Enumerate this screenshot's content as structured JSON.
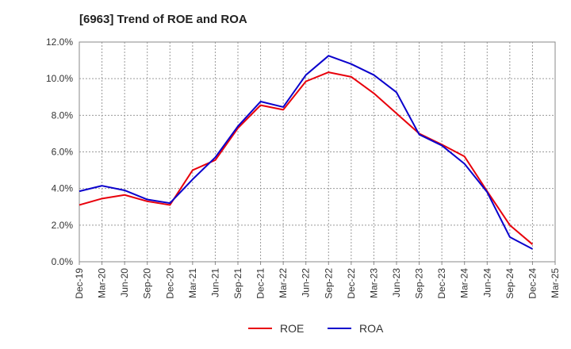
{
  "chart_data": {
    "type": "line",
    "title": "[6963]  Trend of ROE and ROA",
    "xlabel": "",
    "ylabel": "",
    "categories": [
      "Dec-19",
      "Mar-20",
      "Jun-20",
      "Sep-20",
      "Dec-20",
      "Mar-21",
      "Jun-21",
      "Sep-21",
      "Dec-21",
      "Mar-22",
      "Jun-22",
      "Sep-22",
      "Dec-22",
      "Mar-23",
      "Jun-23",
      "Sep-23",
      "Dec-23",
      "Mar-24",
      "Jun-24",
      "Sep-24",
      "Dec-24",
      "Mar-25"
    ],
    "x_tick_labels": [
      "Dec-19",
      "Mar-20",
      "Jun-20",
      "Sep-20",
      "Dec-20",
      "Mar-21",
      "Jun-21",
      "Sep-21",
      "Dec-21",
      "Mar-22",
      "Jun-22",
      "Sep-22",
      "Dec-22",
      "Mar-23",
      "Jun-23",
      "Sep-23",
      "Dec-23",
      "Mar-24",
      "Jun-24",
      "Sep-24",
      "Dec-24",
      "Mar-25"
    ],
    "y_tick_labels": [
      "0.0%",
      "2.0%",
      "4.0%",
      "6.0%",
      "8.0%",
      "10.0%",
      "12.0%"
    ],
    "y_ticks": [
      0,
      2,
      4,
      6,
      8,
      10,
      12
    ],
    "ylim": [
      0,
      12
    ],
    "grid": true,
    "legend_position": "bottom",
    "series": [
      {
        "name": "ROE",
        "color": "#e8000b",
        "values": [
          3.1,
          3.45,
          3.65,
          3.3,
          3.1,
          5.0,
          5.55,
          7.3,
          8.55,
          8.3,
          9.85,
          10.35,
          10.1,
          9.2,
          8.1,
          7.0,
          6.4,
          5.75,
          3.85,
          2.0,
          0.95,
          null
        ]
      },
      {
        "name": "ROA",
        "color": "#0a00cc",
        "values": [
          3.85,
          4.15,
          3.9,
          3.4,
          3.2,
          4.5,
          5.7,
          7.4,
          8.75,
          8.45,
          10.2,
          11.25,
          10.8,
          10.2,
          9.25,
          6.95,
          6.35,
          5.35,
          3.8,
          1.35,
          0.7,
          null
        ]
      }
    ]
  }
}
